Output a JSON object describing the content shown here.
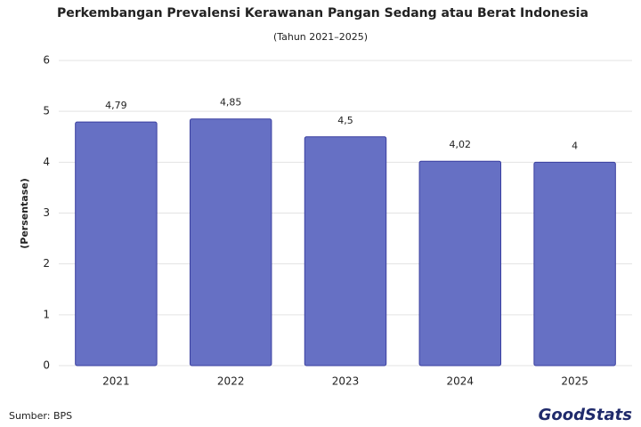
{
  "chart_data": {
    "type": "bar",
    "title": "Perkembangan Prevalensi Kerawanan Pangan Sedang atau Berat Indonesia",
    "subtitle": "(Tahun 2021–2025)",
    "y_label": "(Persentase)",
    "categories": [
      "2021",
      "2022",
      "2023",
      "2024",
      "2025"
    ],
    "values": [
      4.79,
      4.85,
      4.5,
      4.02,
      4
    ],
    "value_labels": [
      "4,79",
      "4,85",
      "4,5",
      "4,02",
      "4"
    ],
    "color": "#6670c4",
    "ylim": [
      0,
      6
    ],
    "yticks": [
      0,
      1,
      2,
      3,
      4,
      5,
      6
    ],
    "grid": true,
    "source": "Sumber: BPS",
    "logo": "GoodStats"
  }
}
